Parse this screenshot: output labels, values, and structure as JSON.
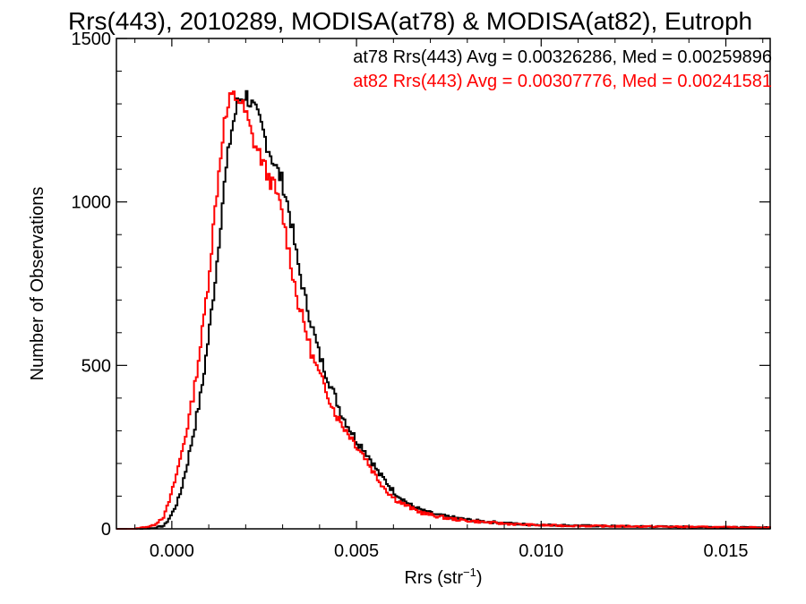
{
  "chart_data": {
    "type": "line",
    "title": "Rrs(443), 2010289, MODISA(at78) & MODISA(at82), Eutroph",
    "xlabel": "Rrs (str",
    "xlabel_sup": "−1",
    "xlabel_close": ")",
    "ylabel": "Number of Observations",
    "xlim": [
      -0.0015,
      0.0162
    ],
    "ylim": [
      0,
      1500
    ],
    "xticks": [
      {
        "value": 0.0,
        "label": "0.000"
      },
      {
        "value": 0.005,
        "label": "0.005"
      },
      {
        "value": 0.01,
        "label": "0.010"
      },
      {
        "value": 0.015,
        "label": "0.015"
      }
    ],
    "yticks": [
      {
        "value": 0,
        "label": "0"
      },
      {
        "value": 500,
        "label": "500"
      },
      {
        "value": 1000,
        "label": "1000"
      },
      {
        "value": 1500,
        "label": "1500"
      }
    ],
    "grid": false,
    "legend_position": "top-right",
    "series": [
      {
        "name": "at78",
        "color": "#000000",
        "legend": "at78 Rrs(443) Avg = 0.00326286, Med = 0.00259896",
        "x": [
          -0.0015,
          -0.001,
          -0.0005,
          -0.0002,
          0.0,
          0.0002,
          0.0004,
          0.0006,
          0.0008,
          0.001,
          0.0012,
          0.0014,
          0.0016,
          0.0018,
          0.002,
          0.0022,
          0.0024,
          0.0026,
          0.0028,
          0.003,
          0.0032,
          0.0034,
          0.0036,
          0.0038,
          0.004,
          0.0042,
          0.0044,
          0.0046,
          0.0048,
          0.005,
          0.0052,
          0.0054,
          0.0056,
          0.0058,
          0.006,
          0.0062,
          0.0065,
          0.0068,
          0.0072,
          0.0076,
          0.008,
          0.0085,
          0.009,
          0.0095,
          0.01,
          0.011,
          0.012,
          0.013,
          0.014,
          0.015,
          0.0162
        ],
        "y": [
          0,
          0,
          2,
          10,
          45,
          95,
          190,
          300,
          420,
          590,
          790,
          1030,
          1210,
          1310,
          1330,
          1290,
          1240,
          1170,
          1110,
          1060,
          960,
          820,
          710,
          620,
          530,
          470,
          410,
          350,
          310,
          270,
          245,
          210,
          170,
          145,
          115,
          95,
          70,
          55,
          42,
          35,
          28,
          22,
          18,
          14,
          12,
          10,
          8,
          7,
          6,
          5,
          4
        ]
      },
      {
        "name": "at82",
        "color": "#ff0000",
        "legend": "at82 Rrs(443) Avg = 0.00307776, Med = 0.00241581",
        "x": [
          -0.0015,
          -0.001,
          -0.0005,
          -0.0002,
          0.0,
          0.0002,
          0.0004,
          0.0006,
          0.0008,
          0.001,
          0.0012,
          0.0014,
          0.0016,
          0.0018,
          0.002,
          0.0022,
          0.0024,
          0.0026,
          0.0028,
          0.003,
          0.0032,
          0.0034,
          0.0036,
          0.0038,
          0.004,
          0.0042,
          0.0044,
          0.0046,
          0.0048,
          0.005,
          0.0052,
          0.0054,
          0.0056,
          0.0058,
          0.006,
          0.0062,
          0.0065,
          0.0068,
          0.0072,
          0.0076,
          0.008,
          0.0085,
          0.009,
          0.0095,
          0.01,
          0.011,
          0.012,
          0.013,
          0.014,
          0.015,
          0.0162
        ],
        "y": [
          0,
          0,
          10,
          40,
          110,
          200,
          300,
          420,
          580,
          770,
          1010,
          1230,
          1320,
          1320,
          1270,
          1190,
          1140,
          1080,
          1040,
          960,
          830,
          700,
          620,
          530,
          470,
          420,
          360,
          320,
          290,
          255,
          225,
          185,
          150,
          120,
          95,
          80,
          62,
          48,
          38,
          30,
          25,
          20,
          16,
          13,
          11,
          9,
          8,
          7,
          6,
          5,
          4
        ]
      }
    ]
  }
}
